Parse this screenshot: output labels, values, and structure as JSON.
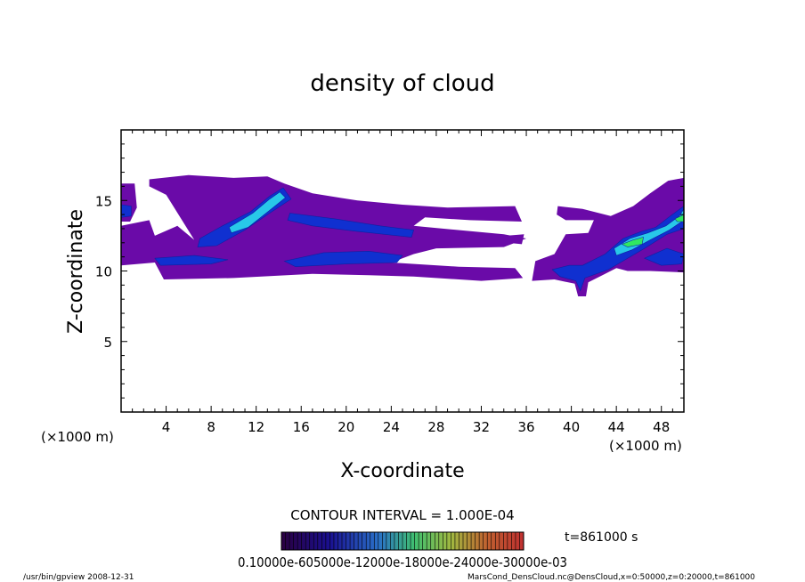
{
  "chart_data": {
    "type": "heatmap",
    "title": "density of cloud",
    "xlabel": "X-coordinate",
    "ylabel": "Z-coordinate",
    "x_unit": "(×1000 m)",
    "x_unit_right": "(×1000 m)",
    "xlim": [
      0,
      50
    ],
    "ylim": [
      0,
      20
    ],
    "x_ticks": [
      4,
      8,
      12,
      16,
      20,
      24,
      28,
      32,
      36,
      40,
      44,
      48
    ],
    "y_ticks": [
      5,
      10,
      15
    ],
    "contour_interval": "CONTOUR INTERVAL = 1.000E-04",
    "time_label": "t=861000 s",
    "colorbar_labels": "0.10000e-605000e-12000e-18000e-24000e-30000e-03",
    "footer_left": "/usr/bin/gpview   2008-12-31",
    "footer_right": "MarsCond_DensCloud.nc@DensCloud,x=0:50000,z=0:20000,t=861000",
    "colors": {
      "low": "#6a0aa8",
      "mid": "#1030d0",
      "high": "#28c8e8",
      "peak": "#30e860"
    },
    "regions": [
      {
        "level": "low",
        "poly": [
          [
            0,
            16.2
          ],
          [
            1.2,
            16.2
          ],
          [
            1.4,
            14.5
          ],
          [
            0.8,
            13.5
          ],
          [
            0,
            13.5
          ]
        ]
      },
      {
        "level": "low",
        "poly": [
          [
            2.5,
            16.5
          ],
          [
            6,
            16.8
          ],
          [
            10,
            16.6
          ],
          [
            13,
            16.7
          ],
          [
            14.5,
            16.2
          ],
          [
            17,
            15.5
          ],
          [
            21,
            15
          ],
          [
            25,
            14.7
          ],
          [
            29,
            14.5
          ],
          [
            35,
            14.6
          ],
          [
            35.6,
            13.5
          ],
          [
            31,
            13.6
          ],
          [
            27,
            13.8
          ],
          [
            26,
            13.2
          ],
          [
            34,
            12.6
          ],
          [
            36,
            12.3
          ],
          [
            34,
            11.7
          ],
          [
            28,
            11.6
          ],
          [
            26,
            11.2
          ],
          [
            24,
            10.6
          ],
          [
            30,
            10.3
          ],
          [
            35,
            10.2
          ],
          [
            35.7,
            9.5
          ],
          [
            32,
            9.3
          ],
          [
            26,
            9.6
          ],
          [
            22,
            9.7
          ],
          [
            17,
            9.8
          ],
          [
            10,
            9.5
          ],
          [
            3.8,
            9.4
          ],
          [
            3,
            10.6
          ],
          [
            0,
            10.4
          ],
          [
            0,
            13.2
          ],
          [
            2.5,
            13.6
          ],
          [
            3,
            12.5
          ],
          [
            5,
            13.2
          ],
          [
            6.5,
            12.2
          ],
          [
            4,
            15.4
          ],
          [
            2.5,
            16
          ]
        ]
      },
      {
        "level": "low",
        "poly": [
          [
            38.8,
            14.6
          ],
          [
            41,
            14.4
          ],
          [
            43.5,
            13.9
          ],
          [
            45.5,
            14.6
          ],
          [
            47,
            15.5
          ],
          [
            48.6,
            16.4
          ],
          [
            50,
            16.6
          ],
          [
            50,
            9.9
          ],
          [
            47,
            10
          ],
          [
            45,
            10
          ],
          [
            44,
            10.2
          ],
          [
            43,
            9.8
          ],
          [
            41.5,
            9.2
          ],
          [
            41.3,
            8.2
          ],
          [
            40.6,
            8.2
          ],
          [
            40.3,
            9.1
          ],
          [
            38.5,
            9.4
          ],
          [
            36.5,
            9.3
          ],
          [
            36.8,
            10.7
          ],
          [
            38.5,
            11.2
          ],
          [
            39.5,
            12.6
          ],
          [
            41.5,
            12.7
          ],
          [
            42,
            13.6
          ],
          [
            39.5,
            13.6
          ],
          [
            38.7,
            14
          ]
        ]
      },
      {
        "level": "low",
        "poly": [
          [
            34.2,
            12.5
          ],
          [
            35.8,
            12.6
          ],
          [
            35.6,
            11.9
          ],
          [
            34.3,
            12
          ]
        ]
      },
      {
        "level": "mid",
        "poly": [
          [
            7,
            12.3
          ],
          [
            9,
            13.2
          ],
          [
            11.5,
            14.2
          ],
          [
            13.2,
            15.3
          ],
          [
            14.4,
            15.9
          ],
          [
            15.1,
            15.1
          ],
          [
            13.2,
            14.1
          ],
          [
            11,
            12.9
          ],
          [
            8.5,
            11.8
          ],
          [
            6.8,
            11.7
          ]
        ]
      },
      {
        "level": "mid",
        "poly": [
          [
            15,
            14.1
          ],
          [
            19,
            13.7
          ],
          [
            23,
            13.2
          ],
          [
            26,
            12.9
          ],
          [
            25.8,
            12.4
          ],
          [
            21,
            12.8
          ],
          [
            17,
            13.2
          ],
          [
            14.8,
            13.6
          ]
        ]
      },
      {
        "level": "mid",
        "poly": [
          [
            14.5,
            10.7
          ],
          [
            18,
            11.3
          ],
          [
            22,
            11.4
          ],
          [
            25,
            11.1
          ],
          [
            24.5,
            10.6
          ],
          [
            20,
            10.5
          ],
          [
            15.5,
            10.3
          ]
        ]
      },
      {
        "level": "mid",
        "poly": [
          [
            0,
            14.7
          ],
          [
            0.9,
            14.6
          ],
          [
            0.9,
            13.9
          ],
          [
            0,
            13.8
          ]
        ]
      },
      {
        "level": "mid",
        "poly": [
          [
            3,
            10.9
          ],
          [
            6.5,
            11.1
          ],
          [
            9.5,
            10.8
          ],
          [
            8,
            10.5
          ],
          [
            3.5,
            10.4
          ]
        ]
      },
      {
        "level": "mid",
        "poly": [
          [
            41,
            10.4
          ],
          [
            43,
            11.2
          ],
          [
            44.6,
            12.3
          ],
          [
            46.2,
            12.8
          ],
          [
            47.5,
            13.1
          ],
          [
            48.8,
            13.9
          ],
          [
            50,
            14.6
          ],
          [
            50,
            13
          ],
          [
            48.5,
            12.6
          ],
          [
            46.5,
            11.6
          ],
          [
            45,
            10.9
          ],
          [
            43.3,
            10.1
          ],
          [
            41.2,
            9.5
          ],
          [
            40.8,
            8.6
          ],
          [
            40.4,
            9.3
          ],
          [
            39,
            9.6
          ],
          [
            38.3,
            10.1
          ],
          [
            39.8,
            10.4
          ]
        ]
      },
      {
        "level": "mid",
        "poly": [
          [
            46.5,
            10.9
          ],
          [
            48.5,
            11.6
          ],
          [
            50,
            11.2
          ],
          [
            49.8,
            10.5
          ],
          [
            48,
            10.4
          ]
        ]
      },
      {
        "level": "high",
        "poly": [
          [
            9.6,
            13.1
          ],
          [
            11.7,
            14.1
          ],
          [
            13.2,
            15.1
          ],
          [
            14.1,
            15.6
          ],
          [
            14.6,
            15.2
          ],
          [
            13.2,
            14.3
          ],
          [
            11.3,
            13.1
          ],
          [
            9.8,
            12.7
          ]
        ]
      },
      {
        "level": "high",
        "poly": [
          [
            43.8,
            11.6
          ],
          [
            45.2,
            12.3
          ],
          [
            46.8,
            12.7
          ],
          [
            48.4,
            13.2
          ],
          [
            49.6,
            13.9
          ],
          [
            50,
            14.4
          ],
          [
            50,
            13.6
          ],
          [
            48.7,
            12.9
          ],
          [
            47,
            12.2
          ],
          [
            45.4,
            11.5
          ],
          [
            44,
            11.1
          ]
        ]
      },
      {
        "level": "peak",
        "poly": [
          [
            44.5,
            11.9
          ],
          [
            45.5,
            12.2
          ],
          [
            46.4,
            12.4
          ],
          [
            46.3,
            11.9
          ],
          [
            45,
            11.7
          ]
        ]
      },
      {
        "level": "peak",
        "poly": [
          [
            49.2,
            13.7
          ],
          [
            50,
            14
          ],
          [
            50,
            13.5
          ],
          [
            49.4,
            13.5
          ]
        ]
      }
    ]
  }
}
